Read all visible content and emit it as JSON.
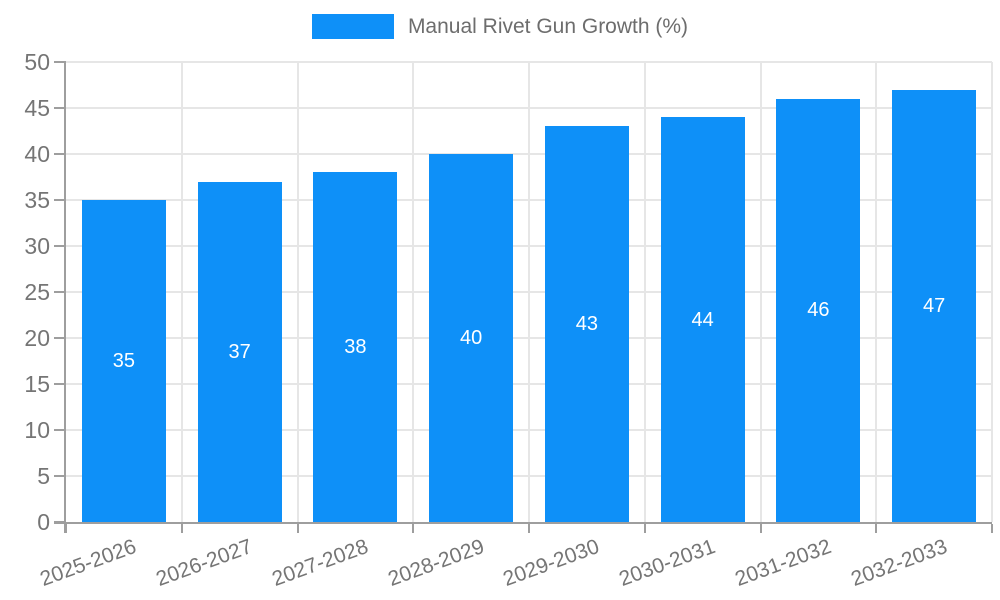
{
  "chart": {
    "legend_label": "Manual Rivet Gun Growth (%)"
  },
  "chart_data": {
    "type": "bar",
    "title": "Manual Rivet Gun Growth (%)",
    "categories": [
      "2025-2026",
      "2026-2027",
      "2027-2028",
      "2028-2029",
      "2029-2030",
      "2030-2031",
      "2031-2032",
      "2032-2033"
    ],
    "values": [
      35,
      37,
      38,
      40,
      43,
      44,
      46,
      47
    ],
    "xlabel": "",
    "ylabel": "",
    "ylim": [
      0,
      50
    ],
    "yticks": [
      0,
      5,
      10,
      15,
      20,
      25,
      30,
      35,
      40,
      45,
      50
    ],
    "grid": true,
    "legend_position": "top-center",
    "value_label_position": "inside-center",
    "x_label_rotation_deg": -20,
    "colors": {
      "bar": "#0e90f8",
      "value_label": "#ffffff",
      "grid": "#e6e6e6",
      "axis": "#9e9e9e",
      "tick_label": "#757575",
      "legend_text": "#6d6d6d",
      "background": "#ffffff"
    }
  }
}
